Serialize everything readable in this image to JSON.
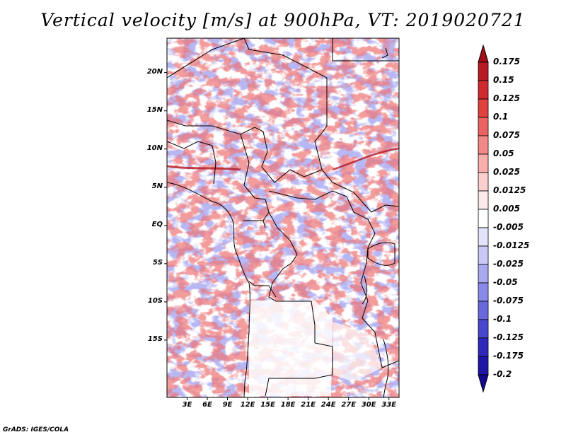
{
  "title": "Vertical velocity [m/s] at 900hPa, VT: 2019020721",
  "credit": "GrADS: IGES/COLA",
  "map": {
    "lon_range": [
      0,
      34.5
    ],
    "lat_range": [
      -22.5,
      24.5
    ],
    "lat_ticks": [
      {
        "value": 20,
        "label": "20N"
      },
      {
        "value": 15,
        "label": "15N"
      },
      {
        "value": 10,
        "label": "10N"
      },
      {
        "value": 5,
        "label": "5N"
      },
      {
        "value": 0,
        "label": "EQ"
      },
      {
        "value": -5,
        "label": "5S"
      },
      {
        "value": -10,
        "label": "10S"
      },
      {
        "value": -15,
        "label": "15S"
      }
    ],
    "lon_ticks": [
      {
        "value": 3,
        "label": "3E"
      },
      {
        "value": 6,
        "label": "6E"
      },
      {
        "value": 9,
        "label": "9E"
      },
      {
        "value": 12,
        "label": "12E"
      },
      {
        "value": 15,
        "label": "15E"
      },
      {
        "value": 18,
        "label": "18E"
      },
      {
        "value": 21,
        "label": "21E"
      },
      {
        "value": 24,
        "label": "24E"
      },
      {
        "value": 27,
        "label": "27E"
      },
      {
        "value": 30,
        "label": "30E"
      },
      {
        "value": 33,
        "label": "33E"
      }
    ]
  },
  "colorbar": {
    "labels": [
      "0.175",
      "0.15",
      "0.125",
      "0.1",
      "0.075",
      "0.05",
      "0.025",
      "0.0125",
      "0.005",
      "-0.005",
      "-0.0125",
      "-0.025",
      "-0.05",
      "-0.075",
      "-0.1",
      "-0.125",
      "-0.175",
      "-0.2"
    ],
    "colors": [
      "#a01016",
      "#b81c22",
      "#cf2a2e",
      "#e0403e",
      "#ec6462",
      "#f38986",
      "#f8aeab",
      "#fbcfcd",
      "#fde9e8",
      "#ffffff",
      "#e3e4fb",
      "#c8c9f6",
      "#a9a9f0",
      "#8a8aea",
      "#6a68dd",
      "#4a47cf",
      "#3028bb",
      "#1f16a6",
      "#14088f"
    ]
  },
  "colors": {
    "positive": "#dc2c2c",
    "negative": "#5050e0",
    "border": "#000000"
  }
}
